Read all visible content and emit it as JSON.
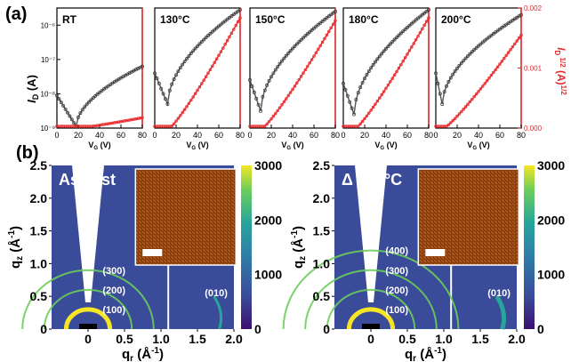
{
  "labels": {
    "panel_a": "(a)",
    "panel_b": "(b)"
  },
  "colors": {
    "iv_black": "#3a3a3a",
    "sqrt_red": "#e8282a",
    "map_bg": "#2a1d6e",
    "cbar": [
      "#3b0f70",
      "#3a4b9a",
      "#2f7ea8",
      "#27a59b",
      "#6ccd5a",
      "#f6e524"
    ]
  },
  "chart_data": [
    {
      "type": "line",
      "panels": [
        "RT",
        "130°C",
        "150°C",
        "180°C",
        "200°C"
      ],
      "xlabel": "V_G (V)",
      "ylabel_left": "I_D (A)",
      "ylabel_right": "I_D^1/2 (A)^1/2",
      "x_ticks": [
        0,
        20,
        40,
        60,
        80
      ],
      "y_left_ticks": [
        "10⁻⁹",
        "10⁻⁸",
        "10⁻⁷",
        "10⁻⁶"
      ],
      "y_left_log_range": [
        -9,
        -5.5
      ],
      "y_right_ticks": [
        "0.000",
        "0.001",
        "0.002"
      ],
      "y_right_range": [
        0,
        0.002
      ],
      "xlim": [
        0,
        80
      ],
      "series": [
        {
          "panel": "RT",
          "min_vg": 18,
          "min_logI": -8.95,
          "max_logI": -7.2,
          "sqrt_max": 0.00018
        },
        {
          "panel": "130°C",
          "min_vg": 12,
          "min_logI": -8.3,
          "max_logI": -5.55,
          "sqrt_max": 0.0019
        },
        {
          "panel": "150°C",
          "min_vg": 10,
          "min_logI": -8.5,
          "max_logI": -5.6,
          "sqrt_max": 0.00185
        },
        {
          "panel": "180°C",
          "min_vg": 10,
          "min_logI": -8.6,
          "max_logI": -5.55,
          "sqrt_max": 0.0019
        },
        {
          "panel": "200°C",
          "min_vg": 6,
          "min_logI": -8.3,
          "max_logI": -5.7,
          "sqrt_max": 0.0016
        }
      ]
    },
    {
      "type": "heatmap",
      "maps": [
        {
          "title": "As cast",
          "peaks": [
            "(300)",
            "(200)",
            "(100)",
            "(010)"
          ]
        },
        {
          "title": "Δ 180°C",
          "peaks": [
            "(400)",
            "(300)",
            "(200)",
            "(100)",
            "(010)"
          ]
        }
      ],
      "xlabel": "q_r (Å⁻¹)",
      "ylabel": "q_z (Å⁻¹)",
      "x_ticks": [
        "0",
        "0.5",
        "1.0",
        "1.5",
        "2.0"
      ],
      "y_ticks": [
        "0",
        "0.5",
        "1.0",
        "1.5",
        "2.0",
        "2.5"
      ],
      "xlim": [
        -0.5,
        2.0
      ],
      "ylim": [
        0,
        2.5
      ],
      "colorbar_ticks": [
        "0",
        "1000",
        "2000",
        "3000"
      ],
      "colorbar_range": [
        0,
        3000
      ]
    }
  ]
}
